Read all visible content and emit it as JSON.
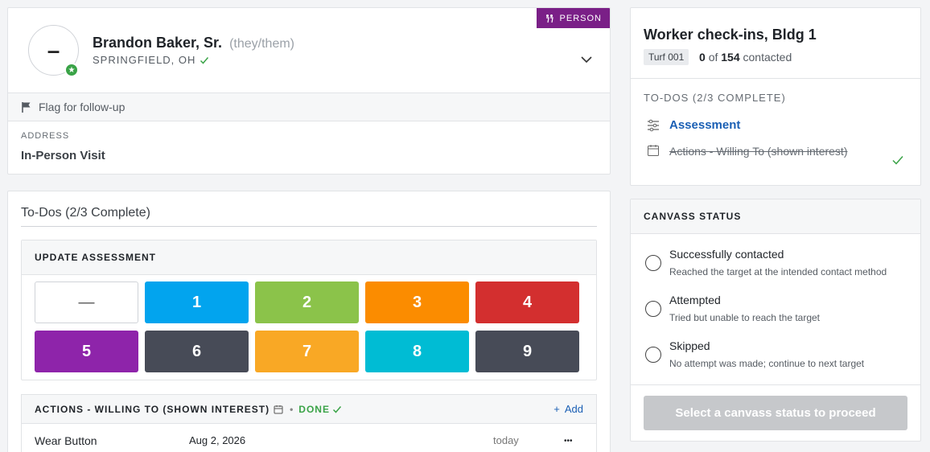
{
  "person": {
    "badge": "PERSON",
    "avatar_initial": "–",
    "name": "Brandon Baker, Sr.",
    "pronouns": "(they/them)",
    "location": "SPRINGFIELD, OH",
    "flag_label": "Flag for follow-up",
    "address_label": "ADDRESS",
    "address_value": "In-Person Visit"
  },
  "todos": {
    "title": "To-Dos (2/3 Complete)",
    "assessment": {
      "heading": "UPDATE ASSESSMENT",
      "options": [
        {
          "label": "—",
          "color": "#ffffff"
        },
        {
          "label": "1",
          "color": "#02a4ee"
        },
        {
          "label": "2",
          "color": "#8bc34a"
        },
        {
          "label": "3",
          "color": "#fb8c00"
        },
        {
          "label": "4",
          "color": "#d32f2f"
        },
        {
          "label": "5",
          "color": "#8e24aa"
        },
        {
          "label": "6",
          "color": "#474b57"
        },
        {
          "label": "7",
          "color": "#f9a825"
        },
        {
          "label": "8",
          "color": "#00bcd4"
        },
        {
          "label": "9",
          "color": "#474b57"
        }
      ]
    },
    "actions": {
      "heading": "ACTIONS - WILLING TO (SHOWN INTEREST)",
      "status": "DONE",
      "add_label": "Add",
      "rows": [
        {
          "name": "Wear Button",
          "date": "Aug 2, 2026",
          "when": "today",
          "menu": "•••"
        }
      ]
    }
  },
  "walklist": {
    "title": "Worker check-ins, Bldg 1",
    "turf": "Turf 001",
    "contacted_count": "0",
    "contacted_of": "of",
    "contacted_total": "154",
    "contacted_suffix": "contacted",
    "todos_heading": "TO-DOS (2/3 COMPLETE)",
    "items": [
      {
        "label": "Assessment",
        "icon": "sliders-icon"
      },
      {
        "label": "Actions - Willing To (shown interest)",
        "icon": "calendar-icon",
        "done": true
      }
    ]
  },
  "canvass": {
    "heading": "CANVASS STATUS",
    "options": [
      {
        "label": "Successfully contacted",
        "desc": "Reached the target at the intended contact method"
      },
      {
        "label": "Attempted",
        "desc": "Tried but unable to reach the target"
      },
      {
        "label": "Skipped",
        "desc": "No attempt was made; continue to next target"
      }
    ],
    "proceed_label": "Select a canvass status to proceed"
  },
  "colors": {
    "person_badge": "#7a1f87",
    "success": "#3aa347",
    "link": "#1a5fb4",
    "disabled_button": "#c6c8cb"
  }
}
